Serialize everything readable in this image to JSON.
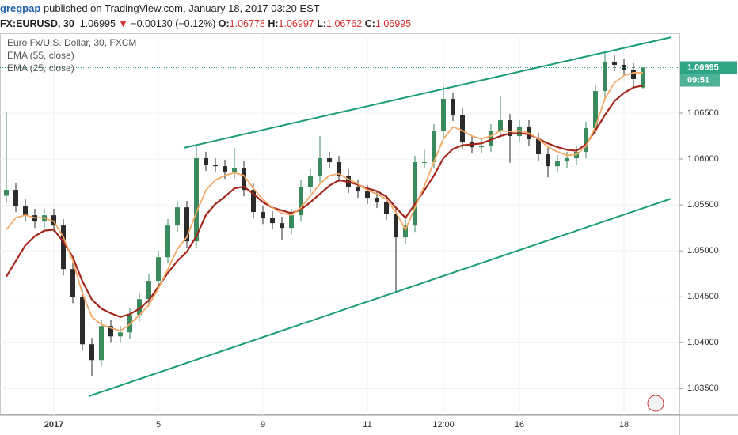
{
  "header": {
    "author": "gregpap",
    "published": " published on TradingView.com, January 18, 2017 03:20 EST",
    "symbol": "FX:EURUSD, 30",
    "last": "1.06995",
    "arrow": "▼",
    "change": "−0.00130 (−0.12%)",
    "ohlc": [
      {
        "label": "O:",
        "value": "1.06778"
      },
      {
        "label": "H:",
        "value": "1.06997"
      },
      {
        "label": "L:",
        "value": "1.06762"
      },
      {
        "label": "C:",
        "value": "1.06995"
      }
    ]
  },
  "chart_data": {
    "type": "candlestick",
    "title": "Euro Fx/U.S. Dollar, 30, FXCM",
    "categories": [
      null,
      null,
      null,
      null,
      null,
      "2017",
      null,
      null,
      null,
      null,
      null,
      null,
      null,
      null,
      null,
      null,
      "5",
      null,
      null,
      null,
      null,
      null,
      null,
      null,
      null,
      null,
      null,
      "9",
      null,
      null,
      null,
      null,
      null,
      null,
      null,
      null,
      null,
      null,
      "11",
      null,
      null,
      null,
      null,
      null,
      null,
      null,
      "12:00",
      null,
      null,
      null,
      null,
      null,
      null,
      null,
      "16",
      null,
      null,
      null,
      null,
      null,
      null,
      null,
      null,
      null,
      null,
      "18",
      null,
      null
    ],
    "open": [
      1.056,
      1.05664,
      1.05491,
      1.05388,
      1.05319,
      1.05388,
      1.05276,
      1.04802,
      1.045,
      1.03983,
      1.03811,
      1.04181,
      1.04069,
      1.04112,
      1.04302,
      1.04474,
      1.04673,
      1.04931,
      1.05276,
      1.05474,
      1.05104,
      1.06009,
      1.0594,
      1.05922,
      1.05854,
      1.05905,
      1.05664,
      1.05423,
      1.05362,
      1.05302,
      1.0525,
      1.05388,
      1.05698,
      1.05819,
      1.06009,
      1.05966,
      1.05819,
      1.05698,
      1.05647,
      1.05578,
      1.05535,
      1.05405,
      1.05147,
      1.05276,
      1.05966,
      1.05966,
      1.0631,
      1.06655,
      1.06483,
      1.06181,
      1.06129,
      1.06147,
      1.0631,
      1.06422,
      1.0625,
      1.06353,
      1.06216,
      1.06052,
      1.05922,
      1.05974,
      1.06009,
      1.06078,
      1.06336,
      1.06741,
      1.0706,
      1.07026,
      1.06974,
      1.06778
    ],
    "high": [
      1.0652,
      1.05734,
      1.05561,
      1.05458,
      1.05458,
      1.05458,
      1.05346,
      1.04872,
      1.0457,
      1.04053,
      1.04251,
      1.04251,
      1.04182,
      1.04372,
      1.04544,
      1.04743,
      1.05001,
      1.05346,
      1.05544,
      1.05544,
      1.0615,
      1.06079,
      1.0601,
      1.05992,
      1.0612,
      1.05975,
      1.05734,
      1.05493,
      1.05432,
      1.05372,
      1.05458,
      1.05768,
      1.05889,
      1.0625,
      1.06079,
      1.06036,
      1.05889,
      1.05768,
      1.05717,
      1.05648,
      1.05605,
      1.05475,
      1.05346,
      1.06036,
      1.061,
      1.0638,
      1.0679,
      1.06725,
      1.06553,
      1.06251,
      1.06217,
      1.0638,
      1.0668,
      1.06492,
      1.06423,
      1.06423,
      1.06286,
      1.06122,
      1.06044,
      1.06079,
      1.06148,
      1.06406,
      1.06811,
      1.0717,
      1.0713,
      1.07096,
      1.07044,
      1.06997
    ],
    "low": [
      1.0552,
      1.05421,
      1.05318,
      1.05249,
      1.05249,
      1.05206,
      1.04732,
      1.0443,
      1.03913,
      1.0364,
      1.03741,
      1.03999,
      1.03999,
      1.04042,
      1.04232,
      1.04404,
      1.04603,
      1.04861,
      1.05206,
      1.05034,
      1.05034,
      1.0587,
      1.05852,
      1.05784,
      1.05784,
      1.05594,
      1.05353,
      1.05292,
      1.05232,
      1.0512,
      1.0518,
      1.05318,
      1.05628,
      1.05749,
      1.05896,
      1.05749,
      1.05628,
      1.05577,
      1.05508,
      1.05465,
      1.05335,
      1.0454,
      1.05077,
      1.05206,
      1.05896,
      1.05896,
      1.0624,
      1.06413,
      1.06111,
      1.06059,
      1.06059,
      1.06077,
      1.0624,
      1.0596,
      1.0618,
      1.06146,
      1.05982,
      1.058,
      1.05852,
      1.05904,
      1.05939,
      1.06008,
      1.06266,
      1.06671,
      1.06956,
      1.06904,
      1.06762,
      1.06762
    ],
    "close": [
      1.05664,
      1.05491,
      1.05388,
      1.05319,
      1.05388,
      1.05276,
      1.04802,
      1.045,
      1.03983,
      1.03811,
      1.04181,
      1.04069,
      1.04112,
      1.04302,
      1.04474,
      1.04673,
      1.04931,
      1.05276,
      1.05474,
      1.05104,
      1.06009,
      1.0594,
      1.05922,
      1.05854,
      1.05905,
      1.05664,
      1.05423,
      1.05362,
      1.05302,
      1.0525,
      1.05388,
      1.05698,
      1.05819,
      1.06009,
      1.05966,
      1.05819,
      1.05698,
      1.05647,
      1.05578,
      1.05535,
      1.05405,
      1.05147,
      1.05276,
      1.05966,
      1.05966,
      1.0631,
      1.06655,
      1.06483,
      1.06181,
      1.06129,
      1.06147,
      1.0631,
      1.06422,
      1.0625,
      1.06353,
      1.06216,
      1.06052,
      1.05922,
      1.05974,
      1.06009,
      1.06078,
      1.06336,
      1.06741,
      1.0706,
      1.07026,
      1.06974,
      1.06871,
      1.06995
    ],
    "up_color": "#3b8a5e",
    "down_color": "#2b2b2b",
    "series": [
      {
        "name": "EMA (55, close)",
        "color": "#a3261b",
        "values": [
          1.0472,
          1.0489,
          1.0506,
          1.0516,
          1.0522,
          1.0523,
          1.051,
          1.0493,
          1.0467,
          1.0447,
          1.0437,
          1.0432,
          1.0428,
          1.0431,
          1.0437,
          1.0446,
          1.0461,
          1.0476,
          1.0489,
          1.0499,
          1.0516,
          1.0539,
          1.0551,
          1.0559,
          1.0568,
          1.057,
          1.0562,
          1.0553,
          1.0547,
          1.0544,
          1.0541,
          1.0545,
          1.0553,
          1.0562,
          1.0571,
          1.0577,
          1.0575,
          1.0572,
          1.0568,
          1.0565,
          1.0559,
          1.0547,
          1.0536,
          1.0551,
          1.0566,
          1.0582,
          1.0601,
          1.0611,
          1.0615,
          1.0616,
          1.0617,
          1.0621,
          1.0625,
          1.0628,
          1.0628,
          1.0627,
          1.0622,
          1.0617,
          1.0613,
          1.061,
          1.0609,
          1.0616,
          1.0631,
          1.0648,
          1.0663,
          1.0672,
          1.0678,
          1.068
        ]
      },
      {
        "name": "EMA (25, close)",
        "color": "#f3a866",
        "values": [
          1.0523,
          1.0536,
          1.0539,
          1.0536,
          1.0536,
          1.0532,
          1.0515,
          1.0489,
          1.0454,
          1.0428,
          1.042,
          1.0416,
          1.0413,
          1.042,
          1.043,
          1.0441,
          1.0459,
          1.048,
          1.0502,
          1.0515,
          1.0542,
          1.0566,
          1.0577,
          1.0582,
          1.0585,
          1.0582,
          1.0568,
          1.0556,
          1.0547,
          1.0541,
          1.0539,
          1.0547,
          1.056,
          1.0573,
          1.0582,
          1.0584,
          1.0578,
          1.0573,
          1.0566,
          1.0562,
          1.0556,
          1.0542,
          1.0523,
          1.0547,
          1.0571,
          1.0597,
          1.0622,
          1.0635,
          1.0631,
          1.0625,
          1.0622,
          1.0625,
          1.0631,
          1.063,
          1.0631,
          1.0628,
          1.0622,
          1.0613,
          1.0608,
          1.0604,
          1.0605,
          1.0614,
          1.0635,
          1.0666,
          1.0683,
          1.0691,
          1.0694,
          1.0694
        ]
      }
    ],
    "ylim": [
      1.0321,
      1.0737
    ],
    "yticks": [
      {
        "value": 1.035,
        "label": "1.03500"
      },
      {
        "value": 1.04,
        "label": "1.04000"
      },
      {
        "value": 1.045,
        "label": "1.04500"
      },
      {
        "value": 1.05,
        "label": "1.05000"
      },
      {
        "value": 1.055,
        "label": "1.05500"
      },
      {
        "value": 1.06,
        "label": "1.06000"
      },
      {
        "value": 1.065,
        "label": "1.06500"
      }
    ],
    "grid": true,
    "last_price": 1.06995,
    "last_price_color": "#2ea586",
    "countdown": "09:51"
  }
}
